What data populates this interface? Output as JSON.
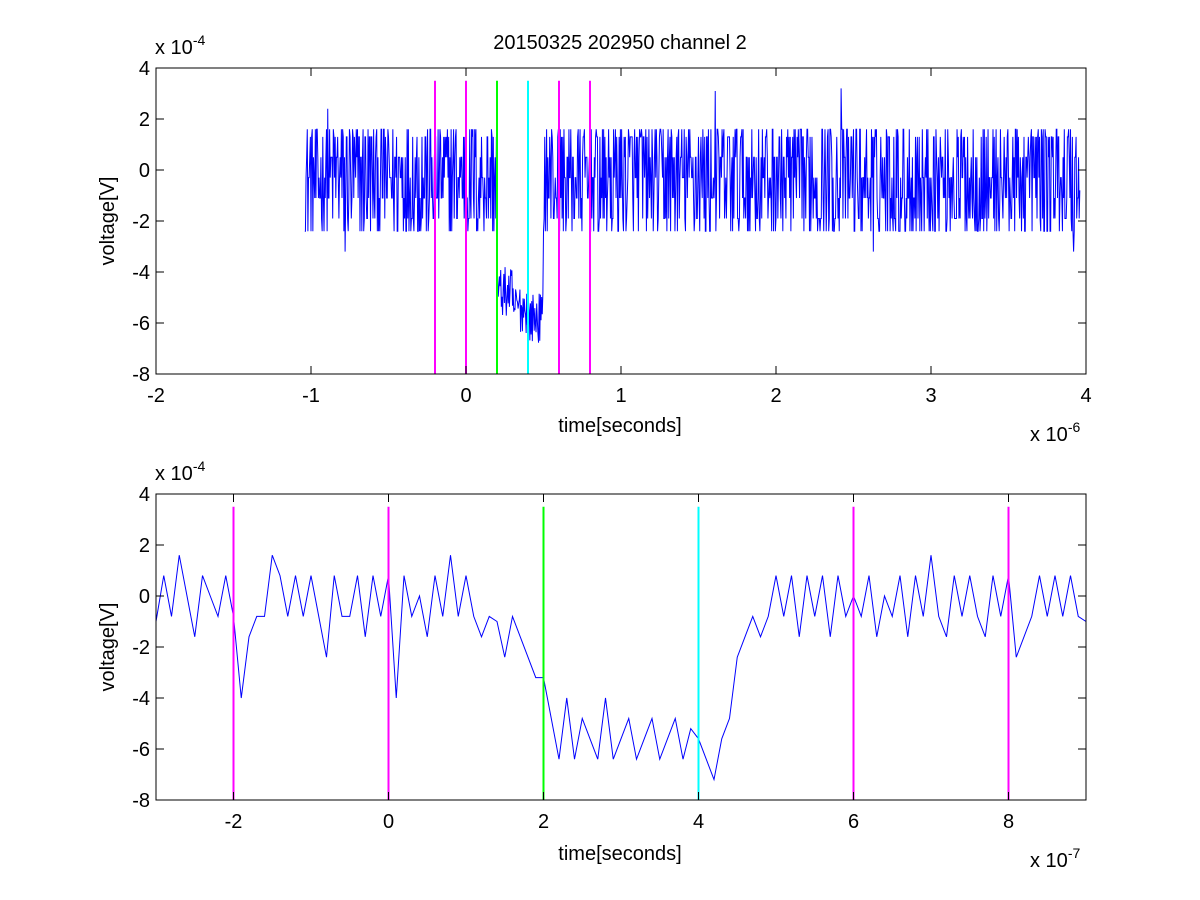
{
  "figure_title": "20150325 202950 channel 2",
  "colors": {
    "trace": "#0000ff",
    "magenta_marker": "#ff00ff",
    "green_marker": "#00ff00",
    "cyan_marker": "#00ffff",
    "axes": "#000000",
    "background": "#ffffff"
  },
  "chart_data": [
    {
      "type": "line",
      "title": "20150325 202950 channel 2",
      "xlabel": "time[seconds]",
      "ylabel": "voltage[V]",
      "x_exponent_label": "x 10",
      "x_exponent": "-6",
      "y_exponent_label": "x 10",
      "y_exponent": "-4",
      "x_scale": 1e-06,
      "y_scale": 0.0001,
      "xlim": [
        -2,
        4
      ],
      "ylim": [
        -8,
        4
      ],
      "xticks": [
        -2,
        -1,
        0,
        1,
        2,
        3,
        4
      ],
      "xtick_labels": [
        "-2",
        "-1",
        "0",
        "1",
        "2",
        "3",
        "4"
      ],
      "yticks": [
        -8,
        -6,
        -4,
        -2,
        0,
        2,
        4
      ],
      "ytick_labels": [
        "-8",
        "-6",
        "-4",
        "-2",
        "0",
        "2",
        "4"
      ],
      "grid": false,
      "series": [
        {
          "sample_spacing": 0.004,
          "x_start": -1.04,
          "x_end": 3.96,
          "noise_levels": [
            -2.4,
            -1.6,
            -0.8,
            0,
            0.8,
            1.6,
            2.4
          ],
          "spikes": [
            [
              -0.89,
              2.4
            ],
            [
              -0.78,
              -3.2
            ],
            [
              1.61,
              3.1
            ],
            [
              2.42,
              3.2
            ],
            [
              2.63,
              -3.2
            ],
            [
              3.92,
              -3.2
            ]
          ],
          "pulse_segments": [
            [
              -1.04,
              0.12,
              -0.6
            ],
            [
              0.12,
              0.2,
              -0.6
            ],
            [
              0.2,
              0.3,
              -4.8
            ],
            [
              0.3,
              0.4,
              -5.4
            ],
            [
              0.4,
              0.5,
              -5.8
            ],
            [
              0.5,
              3.96,
              -0.6
            ]
          ]
        }
      ],
      "vlines": [
        {
          "x": -0.2,
          "color": "#ff00ff"
        },
        {
          "x": 0.0,
          "color": "#ff00ff"
        },
        {
          "x": 0.2,
          "color": "#00ff00"
        },
        {
          "x": 0.4,
          "color": "#00ffff"
        },
        {
          "x": 0.6,
          "color": "#ff00ff"
        },
        {
          "x": 0.8,
          "color": "#ff00ff"
        }
      ],
      "vline_ylim": [
        -8,
        3.5
      ]
    },
    {
      "type": "line",
      "title": "",
      "xlabel": "time[seconds]",
      "ylabel": "voltage[V]",
      "x_exponent_label": "x 10",
      "x_exponent": "-7",
      "y_exponent_label": "x 10",
      "y_exponent": "-4",
      "x_scale": 1e-07,
      "y_scale": 0.0001,
      "xlim": [
        -3,
        9
      ],
      "ylim": [
        -8,
        4
      ],
      "xticks": [
        -2,
        0,
        2,
        4,
        6,
        8
      ],
      "xtick_labels": [
        "-2",
        "0",
        "2",
        "4",
        "6",
        "8"
      ],
      "yticks": [
        -8,
        -6,
        -4,
        -2,
        0,
        2,
        4
      ],
      "ytick_labels": [
        "-8",
        "-6",
        "-4",
        "-2",
        "0",
        "2",
        "4"
      ],
      "grid": false,
      "series": [
        {
          "x": [
            -3.0,
            -2.9,
            -2.8,
            -2.7,
            -2.6,
            -2.5,
            -2.4,
            -2.3,
            -2.2,
            -2.1,
            -2.0,
            -1.9,
            -1.8,
            -1.7,
            -1.6,
            -1.5,
            -1.4,
            -1.3,
            -1.2,
            -1.1,
            -1.0,
            -0.9,
            -0.8,
            -0.7,
            -0.6,
            -0.5,
            -0.4,
            -0.3,
            -0.2,
            -0.1,
            0.0,
            0.1,
            0.2,
            0.3,
            0.4,
            0.5,
            0.6,
            0.7,
            0.8,
            0.9,
            1.0,
            1.1,
            1.2,
            1.3,
            1.4,
            1.5,
            1.6,
            1.7,
            1.8,
            1.9,
            2.0,
            2.1,
            2.2,
            2.3,
            2.4,
            2.5,
            2.6,
            2.7,
            2.8,
            2.9,
            3.0,
            3.1,
            3.2,
            3.3,
            3.4,
            3.5,
            3.6,
            3.7,
            3.8,
            3.9,
            4.0,
            4.1,
            4.2,
            4.3,
            4.4,
            4.5,
            4.6,
            4.7,
            4.8,
            4.9,
            5.0,
            5.1,
            5.2,
            5.3,
            5.4,
            5.5,
            5.6,
            5.7,
            5.8,
            5.9,
            6.0,
            6.1,
            6.2,
            6.3,
            6.4,
            6.5,
            6.6,
            6.7,
            6.8,
            6.9,
            7.0,
            7.1,
            7.2,
            7.3,
            7.4,
            7.5,
            7.6,
            7.7,
            7.8,
            7.9,
            8.0,
            8.1,
            8.2,
            8.3,
            8.4,
            8.5,
            8.6,
            8.7,
            8.8,
            8.9,
            9.0
          ],
          "y": [
            -1.0,
            0.8,
            -0.8,
            1.6,
            0.0,
            -1.6,
            0.8,
            0.0,
            -0.8,
            0.8,
            -0.8,
            -4.0,
            -1.6,
            -0.8,
            -0.8,
            1.6,
            0.8,
            -0.8,
            0.8,
            -0.8,
            0.8,
            -0.8,
            -2.4,
            0.8,
            -0.8,
            -0.8,
            0.8,
            -1.6,
            0.8,
            -0.8,
            0.8,
            -4.0,
            0.8,
            -0.8,
            0.0,
            -1.6,
            0.8,
            -0.8,
            1.6,
            -0.8,
            0.8,
            -0.8,
            -1.6,
            -0.8,
            -1.0,
            -2.4,
            -0.8,
            -1.6,
            -2.4,
            -3.2,
            -3.2,
            -4.8,
            -6.4,
            -4.0,
            -6.4,
            -4.8,
            -5.6,
            -6.4,
            -4.0,
            -6.4,
            -5.6,
            -4.8,
            -6.4,
            -5.6,
            -4.8,
            -6.4,
            -5.6,
            -4.8,
            -6.4,
            -5.2,
            -5.6,
            -6.4,
            -7.2,
            -5.6,
            -4.8,
            -2.4,
            -1.6,
            -0.8,
            -1.6,
            -0.8,
            0.8,
            -0.8,
            0.8,
            -1.6,
            0.8,
            -0.8,
            0.8,
            -1.6,
            0.8,
            -0.8,
            0.0,
            -0.8,
            0.8,
            -1.6,
            0.0,
            -0.8,
            0.8,
            -1.6,
            0.8,
            -0.8,
            1.6,
            -0.8,
            -1.6,
            0.8,
            -0.8,
            0.8,
            -0.8,
            -1.6,
            0.8,
            -0.8,
            0.8,
            -2.4,
            -1.6,
            -0.8,
            0.8,
            -0.8,
            0.8,
            -0.8,
            0.8,
            -0.8,
            -1.0
          ]
        }
      ],
      "vlines": [
        {
          "x": -2.0,
          "color": "#ff00ff"
        },
        {
          "x": 0.0,
          "color": "#ff00ff"
        },
        {
          "x": 2.0,
          "color": "#00ff00"
        },
        {
          "x": 4.0,
          "color": "#00ffff"
        },
        {
          "x": 6.0,
          "color": "#ff00ff"
        },
        {
          "x": 8.0,
          "color": "#ff00ff"
        }
      ],
      "vline_ylim": [
        -8,
        3.5
      ]
    }
  ]
}
